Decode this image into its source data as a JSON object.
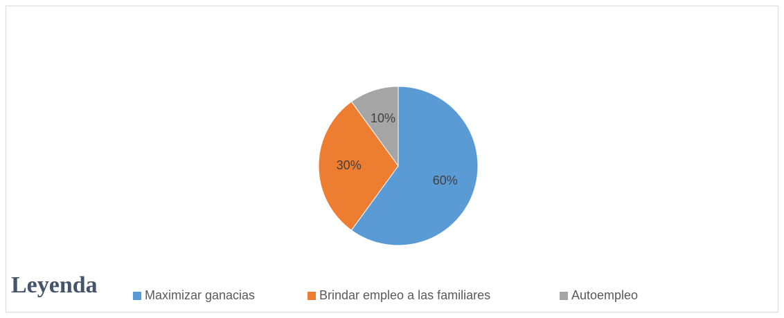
{
  "chart_data": {
    "type": "pie",
    "legend_title": "Leyenda",
    "categories": [
      "Maximizar ganacias",
      "Brindar empleo a las familiares",
      "Autoempleo"
    ],
    "values": [
      60,
      30,
      10
    ],
    "value_labels": [
      "60%",
      "30%",
      "10%"
    ],
    "colors": [
      "#5b9bd5",
      "#ed7d31",
      "#a5a5a5"
    ],
    "legend": "bottom"
  }
}
